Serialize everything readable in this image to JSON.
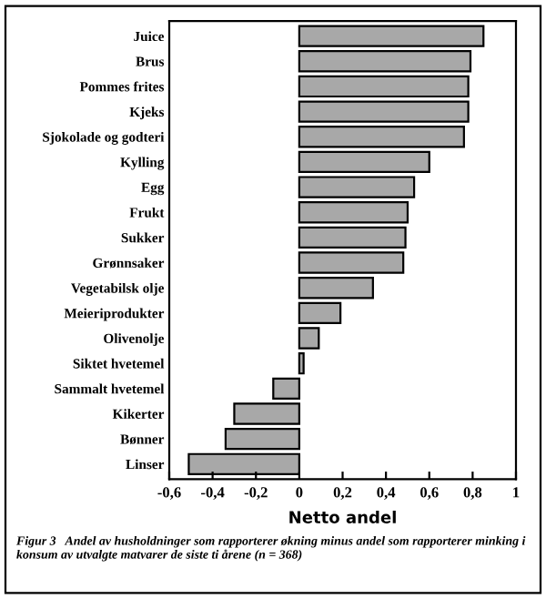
{
  "chart_data": {
    "type": "bar",
    "orientation": "horizontal",
    "categories": [
      "Juice",
      "Brus",
      "Pommes frites",
      "Kjeks",
      "Sjokolade og godteri",
      "Kylling",
      "Egg",
      "Frukt",
      "Sukker",
      "Grønnsaker",
      "Vegetabilsk olje",
      "Meieriprodukter",
      "Olivenolje",
      "Siktet hvetemel",
      "Sammalt hvetemel",
      "Kikerter",
      "Bønner",
      "Linser"
    ],
    "values": [
      0.85,
      0.79,
      0.78,
      0.78,
      0.76,
      0.6,
      0.53,
      0.5,
      0.49,
      0.48,
      0.34,
      0.19,
      0.09,
      0.02,
      -0.12,
      -0.3,
      -0.34,
      -0.51
    ],
    "color": "#a8a8a8",
    "xlim": [
      -0.6,
      1
    ],
    "xticks": [
      {
        "value": -0.6,
        "label": "-0,6"
      },
      {
        "value": -0.4,
        "label": "-0,4"
      },
      {
        "value": -0.2,
        "label": "-0,2"
      },
      0,
      {
        "value": 0.2,
        "label": "0,2"
      },
      {
        "value": 0.4,
        "label": "0,4"
      },
      {
        "value": 0.6,
        "label": "0,6"
      },
      {
        "value": 0.8,
        "label": "0,8"
      },
      1
    ],
    "xlabel": "Netto andel",
    "grid": false,
    "annotations": [
      "Figur 3   Andel av husholdninger som rapporterer økning minus andel som rapporterer minking i konsum av utvalgte matvarer de siste ti årene (n = 368)"
    ]
  }
}
